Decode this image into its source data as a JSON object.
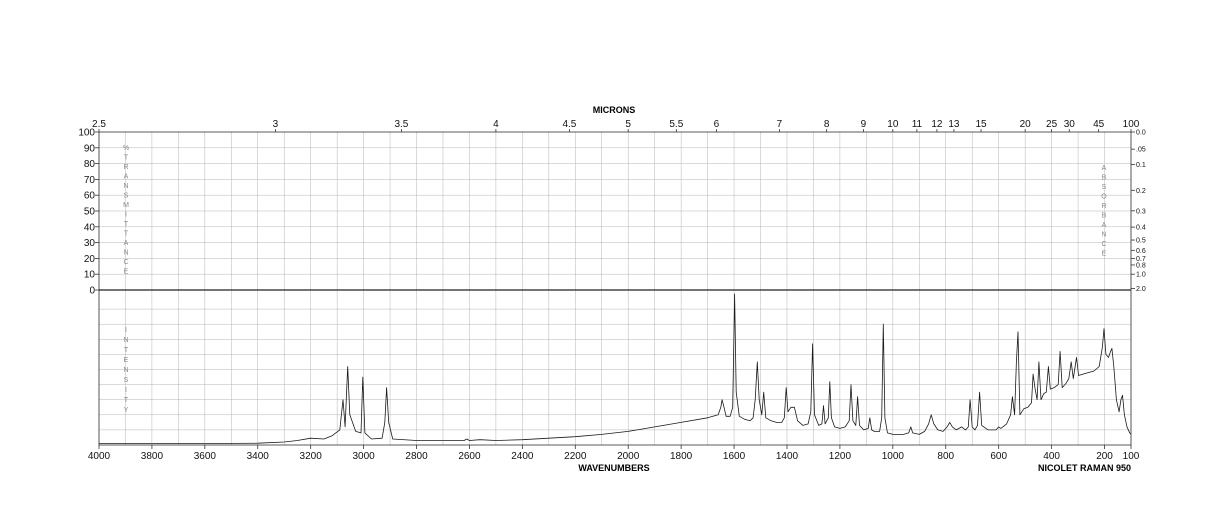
{
  "chart_data": {
    "type": "line",
    "top_axis": {
      "title": "MICRONS",
      "ticks": [
        {
          "label": "2.5",
          "micron": 2.5
        },
        {
          "label": "3",
          "micron": 3
        },
        {
          "label": "3.5",
          "micron": 3.5
        },
        {
          "label": "4",
          "micron": 4
        },
        {
          "label": "4.5",
          "micron": 4.5
        },
        {
          "label": "5",
          "micron": 5
        },
        {
          "label": "5.5",
          "micron": 5.5
        },
        {
          "label": "6",
          "micron": 6
        },
        {
          "label": "7",
          "micron": 7
        },
        {
          "label": "8",
          "micron": 8
        },
        {
          "label": "9",
          "micron": 9
        },
        {
          "label": "10",
          "micron": 10
        },
        {
          "label": "11",
          "micron": 11
        },
        {
          "label": "12",
          "micron": 12
        },
        {
          "label": "13",
          "micron": 13
        },
        {
          "label": "15",
          "micron": 15
        },
        {
          "label": "20",
          "micron": 20
        },
        {
          "label": "25",
          "micron": 25
        },
        {
          "label": "30",
          "micron": 30
        },
        {
          "label": "45",
          "micron": 45
        },
        {
          "label": "100",
          "micron": 100
        }
      ]
    },
    "bottom_axis": {
      "title": "WAVENUMBERS",
      "xlim": [
        4000,
        100
      ],
      "ticks": [
        {
          "label": "4000",
          "value": 4000
        },
        {
          "label": "3800",
          "value": 3800
        },
        {
          "label": "3600",
          "value": 3600
        },
        {
          "label": "3400",
          "value": 3400
        },
        {
          "label": "3200",
          "value": 3200
        },
        {
          "label": "3000",
          "value": 3000
        },
        {
          "label": "2800",
          "value": 2800
        },
        {
          "label": "2600",
          "value": 2600
        },
        {
          "label": "2400",
          "value": 2400
        },
        {
          "label": "2200",
          "value": 2200
        },
        {
          "label": "2000",
          "value": 2000
        },
        {
          "label": "1800",
          "value": 1800
        },
        {
          "label": "1600",
          "value": 1600
        },
        {
          "label": "1400",
          "value": 1400
        },
        {
          "label": "1200",
          "value": 1200
        },
        {
          "label": "1000",
          "value": 1000
        },
        {
          "label": "800",
          "value": 800
        },
        {
          "label": "600",
          "value": 600
        },
        {
          "label": "400",
          "value": 400
        },
        {
          "label": "200",
          "value": 200
        },
        {
          "label": "100",
          "value": 100
        }
      ]
    },
    "instrument_label": "NICOLET RAMAN 950",
    "transmittance_axis": {
      "title_letters": [
        "%",
        "T",
        "R",
        "A",
        "N",
        "S",
        "M",
        "I",
        "T",
        "T",
        "A",
        "N",
        "C",
        "E"
      ],
      "ylim": [
        0,
        100
      ],
      "ticks": [
        {
          "label": "100",
          "value": 100
        },
        {
          "label": "90",
          "value": 90
        },
        {
          "label": "80",
          "value": 80
        },
        {
          "label": "70",
          "value": 70
        },
        {
          "label": "60",
          "value": 60
        },
        {
          "label": "50",
          "value": 50
        },
        {
          "label": "40",
          "value": 40
        },
        {
          "label": "30",
          "value": 30
        },
        {
          "label": "20",
          "value": 20
        },
        {
          "label": "10",
          "value": 10
        },
        {
          "label": "0",
          "value": 0
        }
      ]
    },
    "absorbance_axis": {
      "title_letters": [
        "A",
        "B",
        "S",
        "O",
        "R",
        "B",
        "A",
        "N",
        "C",
        "E"
      ],
      "ticks": [
        {
          "label": "0.0",
          "value": 0.0
        },
        {
          "label": ".05",
          "value": 0.05
        },
        {
          "label": "0.1",
          "value": 0.1
        },
        {
          "label": "0.2",
          "value": 0.2
        },
        {
          "label": "0.3",
          "value": 0.3
        },
        {
          "label": "0.4",
          "value": 0.4
        },
        {
          "label": "0.5",
          "value": 0.5
        },
        {
          "label": "0.6",
          "value": 0.6
        },
        {
          "label": "0.7",
          "value": 0.7
        },
        {
          "label": "0.8",
          "value": 0.8
        },
        {
          "label": "1.0",
          "value": 1.0
        },
        {
          "label": "2.0",
          "value": 2.0
        }
      ]
    },
    "intensity_axis": {
      "title_letters": [
        "I",
        "N",
        "T",
        "E",
        "N",
        "S",
        "I",
        "T",
        "Y"
      ],
      "ylim": [
        0,
        100
      ]
    },
    "grid": true,
    "series": [
      {
        "points": [
          [
            4000,
            1.0
          ],
          [
            3600,
            1.0
          ],
          [
            3400,
            1.2
          ],
          [
            3300,
            2.0
          ],
          [
            3250,
            3.0
          ],
          [
            3200,
            4.5
          ],
          [
            3150,
            4.0
          ],
          [
            3120,
            6.0
          ],
          [
            3090,
            10.0
          ],
          [
            3078,
            30.0
          ],
          [
            3070,
            12.0
          ],
          [
            3060,
            52.0
          ],
          [
            3052,
            20.0
          ],
          [
            3030,
            9.0
          ],
          [
            3010,
            8.0
          ],
          [
            3003,
            45.0
          ],
          [
            2995,
            8.0
          ],
          [
            2970,
            4.0
          ],
          [
            2930,
            4.5
          ],
          [
            2920,
            15.0
          ],
          [
            2913,
            38.0
          ],
          [
            2905,
            15.0
          ],
          [
            2890,
            4.0
          ],
          [
            2800,
            3.0
          ],
          [
            2700,
            3.0
          ],
          [
            2620,
            3.0
          ],
          [
            2610,
            4.0
          ],
          [
            2600,
            3.0
          ],
          [
            2560,
            3.5
          ],
          [
            2500,
            3.0
          ],
          [
            2400,
            3.5
          ],
          [
            2300,
            4.5
          ],
          [
            2200,
            5.5
          ],
          [
            2100,
            7.0
          ],
          [
            2000,
            9.0
          ],
          [
            1900,
            12.0
          ],
          [
            1800,
            15.0
          ],
          [
            1700,
            18.0
          ],
          [
            1660,
            20.0
          ],
          [
            1650,
            25.0
          ],
          [
            1645,
            30.0
          ],
          [
            1638,
            25.0
          ],
          [
            1630,
            19.0
          ],
          [
            1615,
            19.0
          ],
          [
            1605,
            25.0
          ],
          [
            1598,
            100.0
          ],
          [
            1592,
            35.0
          ],
          [
            1580,
            19.0
          ],
          [
            1560,
            17.0
          ],
          [
            1540,
            16.0
          ],
          [
            1528,
            18.0
          ],
          [
            1520,
            30.0
          ],
          [
            1512,
            55.0
          ],
          [
            1505,
            30.0
          ],
          [
            1495,
            20.0
          ],
          [
            1488,
            35.0
          ],
          [
            1480,
            18.0
          ],
          [
            1460,
            16.0
          ],
          [
            1440,
            15.0
          ],
          [
            1420,
            15.0
          ],
          [
            1410,
            18.0
          ],
          [
            1403,
            38.0
          ],
          [
            1396,
            22.0
          ],
          [
            1385,
            25.0
          ],
          [
            1372,
            25.0
          ],
          [
            1360,
            16.0
          ],
          [
            1340,
            13.0
          ],
          [
            1320,
            14.0
          ],
          [
            1310,
            22.0
          ],
          [
            1303,
            67.0
          ],
          [
            1296,
            20.0
          ],
          [
            1280,
            13.0
          ],
          [
            1268,
            14.0
          ],
          [
            1262,
            26.0
          ],
          [
            1256,
            14.0
          ],
          [
            1244,
            18.0
          ],
          [
            1238,
            42.0
          ],
          [
            1232,
            18.0
          ],
          [
            1220,
            12.0
          ],
          [
            1200,
            11.0
          ],
          [
            1180,
            12.0
          ],
          [
            1165,
            16.0
          ],
          [
            1158,
            40.0
          ],
          [
            1151,
            16.0
          ],
          [
            1140,
            13.0
          ],
          [
            1133,
            32.0
          ],
          [
            1126,
            13.0
          ],
          [
            1110,
            10.0
          ],
          [
            1093,
            11.0
          ],
          [
            1087,
            18.0
          ],
          [
            1080,
            10.0
          ],
          [
            1070,
            9.0
          ],
          [
            1050,
            9.0
          ],
          [
            1042,
            18.0
          ],
          [
            1036,
            80.0
          ],
          [
            1030,
            18.0
          ],
          [
            1020,
            8.0
          ],
          [
            1000,
            7.0
          ],
          [
            960,
            7.0
          ],
          [
            940,
            8.0
          ],
          [
            932,
            12.0
          ],
          [
            925,
            8.0
          ],
          [
            900,
            7.0
          ],
          [
            880,
            9.0
          ],
          [
            865,
            14.0
          ],
          [
            855,
            20.0
          ],
          [
            845,
            14.0
          ],
          [
            830,
            10.0
          ],
          [
            810,
            9.0
          ],
          [
            795,
            12.0
          ],
          [
            785,
            15.0
          ],
          [
            775,
            12.0
          ],
          [
            760,
            10.0
          ],
          [
            740,
            12.0
          ],
          [
            725,
            10.0
          ],
          [
            715,
            12.0
          ],
          [
            708,
            30.0
          ],
          [
            700,
            12.0
          ],
          [
            690,
            10.0
          ],
          [
            680,
            13.0
          ],
          [
            672,
            35.0
          ],
          [
            664,
            13.0
          ],
          [
            640,
            10.0
          ],
          [
            610,
            10.0
          ],
          [
            600,
            12.0
          ],
          [
            592,
            11.0
          ],
          [
            570,
            14.0
          ],
          [
            555,
            20.0
          ],
          [
            548,
            32.0
          ],
          [
            540,
            20.0
          ],
          [
            533,
            55.0
          ],
          [
            527,
            75.0
          ],
          [
            520,
            20.0
          ],
          [
            505,
            24.0
          ],
          [
            490,
            25.0
          ],
          [
            476,
            28.0
          ],
          [
            470,
            47.0
          ],
          [
            463,
            38.0
          ],
          [
            455,
            30.0
          ],
          [
            448,
            55.0
          ],
          [
            440,
            30.0
          ],
          [
            430,
            34.0
          ],
          [
            420,
            35.0
          ],
          [
            412,
            52.0
          ],
          [
            405,
            37.0
          ],
          [
            390,
            38.0
          ],
          [
            375,
            40.0
          ],
          [
            368,
            62.0
          ],
          [
            360,
            38.0
          ],
          [
            345,
            41.0
          ],
          [
            335,
            44.0
          ],
          [
            326,
            55.0
          ],
          [
            318,
            44.0
          ],
          [
            306,
            58.0
          ],
          [
            298,
            46.0
          ],
          [
            280,
            47.0
          ],
          [
            260,
            48.0
          ],
          [
            240,
            49.0
          ],
          [
            220,
            52.0
          ],
          [
            208,
            65.0
          ],
          [
            202,
            77.0
          ],
          [
            195,
            60.0
          ],
          [
            185,
            58.0
          ],
          [
            177,
            62.0
          ],
          [
            172,
            64.0
          ],
          [
            165,
            52.0
          ],
          [
            155,
            30.0
          ],
          [
            145,
            22.0
          ],
          [
            138,
            30.0
          ],
          [
            132,
            33.0
          ],
          [
            125,
            20.0
          ],
          [
            115,
            12.0
          ],
          [
            105,
            8.0
          ],
          [
            100,
            7.0
          ]
        ]
      }
    ]
  }
}
